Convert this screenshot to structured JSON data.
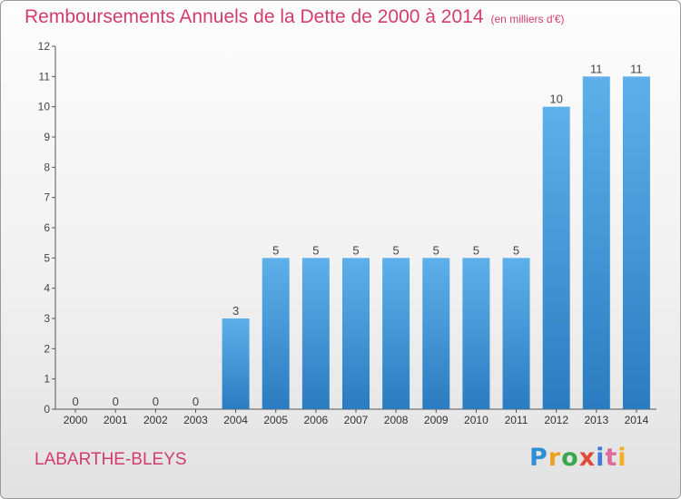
{
  "header": {
    "title": "Remboursements Annuels de la Dette de 2000 à 2014",
    "subtitle": "(en milliers d'€)"
  },
  "footer": {
    "commune": "LABARTHE-BLEYS",
    "logo_text": "Proxiti"
  },
  "colors": {
    "title": "#d23c6e",
    "bar_top": "#5eb0ea",
    "bar_bottom": "#2a7cc0"
  },
  "chart_data": {
    "type": "bar",
    "title": "Remboursements Annuels de la Dette de 2000 à 2014",
    "subtitle": "(en milliers d'€)",
    "xlabel": "",
    "ylabel": "",
    "categories": [
      "2000",
      "2001",
      "2002",
      "2003",
      "2004",
      "2005",
      "2006",
      "2007",
      "2008",
      "2009",
      "2010",
      "2011",
      "2012",
      "2013",
      "2014"
    ],
    "values": [
      0,
      0,
      0,
      0,
      3,
      5,
      5,
      5,
      5,
      5,
      5,
      5,
      10,
      11,
      11
    ],
    "ylim": [
      0,
      12
    ],
    "yticks": [
      "0",
      "1",
      "2",
      "3",
      "4",
      "5",
      "6",
      "7",
      "8",
      "9",
      "10",
      "11",
      "12"
    ],
    "grid": false,
    "data_labels": true
  }
}
